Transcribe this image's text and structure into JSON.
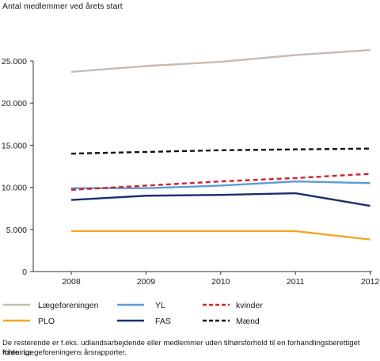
{
  "chart_data": {
    "type": "line",
    "title": "",
    "ylabel": "Antal medlemmer ved årets start",
    "xlabel": "",
    "x": [
      "2008",
      "2009",
      "2010",
      "2011",
      "2012"
    ],
    "ylim": [
      0,
      25000
    ],
    "yticks": [
      0,
      5000,
      10000,
      15000,
      20000,
      25000
    ],
    "ytick_labels": [
      "0",
      "5.000",
      "10.000",
      "15.000",
      "20.000",
      "25.000"
    ],
    "grid": false,
    "legend_position": "bottom",
    "series": [
      {
        "name": "Lægeforeningen",
        "color": "#c6bab3",
        "style": "solid",
        "values": [
          23700,
          24400,
          24900,
          25700,
          26300
        ]
      },
      {
        "name": "YL",
        "color": "#5b9bd5",
        "style": "solid",
        "values": [
          9900,
          9900,
          10200,
          10700,
          10500
        ]
      },
      {
        "name": "kvinder",
        "color": "#d0232a",
        "style": "dashed",
        "values": [
          9700,
          10200,
          10700,
          11100,
          11600
        ]
      },
      {
        "name": "PLO",
        "color": "#f5a623",
        "style": "solid",
        "values": [
          4800,
          4800,
          4800,
          4800,
          3800
        ]
      },
      {
        "name": "FAS",
        "color": "#1a2f6e",
        "style": "solid",
        "values": [
          8500,
          9000,
          9100,
          9300,
          7800
        ]
      },
      {
        "name": "Mænd",
        "color": "#111111",
        "style": "dashed",
        "values": [
          14000,
          14200,
          14400,
          14500,
          14600
        ]
      }
    ]
  },
  "footnotes": [
    "De resterende er f.eks. udlandsarbejdende eller medlemmer uden tilhørsforhold til en forhandlingsberettiget forening.",
    "Kilde: Lægeforeningens årsrapporter."
  ]
}
